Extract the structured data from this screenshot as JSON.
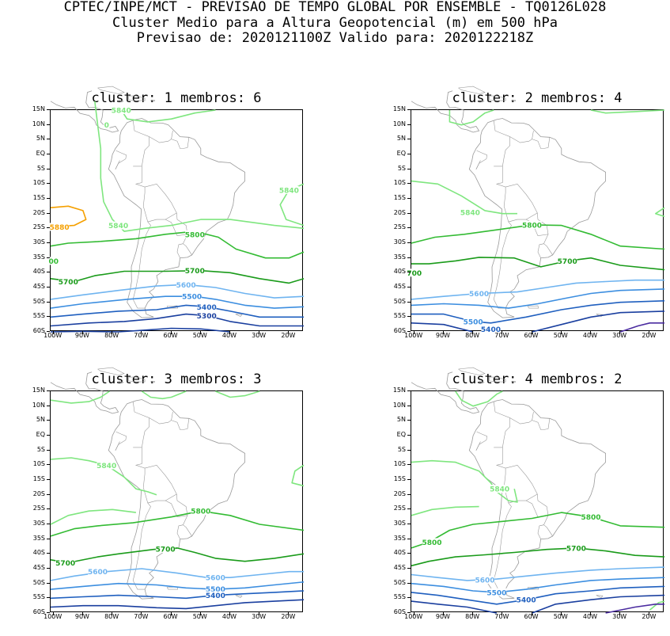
{
  "header": {
    "line1": "CPTEC/INPE/MCT - PREVISAO DE TEMPO GLOBAL POR ENSEMBLE - TQ0126L028",
    "line2": "Cluster Medio para a Altura Geopotencial (m) em 500 hPa",
    "line3": "Previsao de: 2020121100Z   Valido para: 2020122218Z"
  },
  "axes": {
    "lat_labels": [
      "15N",
      "10N",
      "5N",
      "EQ",
      "5S",
      "10S",
      "15S",
      "20S",
      "25S",
      "30S",
      "35S",
      "40S",
      "45S",
      "50S",
      "55S",
      "60S"
    ],
    "lon_labels": [
      "100W",
      "90W",
      "80W",
      "70W",
      "60W",
      "50W",
      "40W",
      "30W",
      "20W"
    ]
  },
  "colors": {
    "c5880": "#f5a000",
    "c5840": "#7fe67f",
    "c5800": "#33bb33",
    "c5700": "#1a9b1a",
    "c5600": "#6fb4f0",
    "c5500": "#3c8ee0",
    "c5400": "#1f5fbf",
    "c5300": "#1a3f9f",
    "c5200": "#4b2ca0",
    "coast": "#999999"
  },
  "panels": [
    {
      "title": "cluster: 1   membros: 6",
      "labels": [
        {
          "text": "5840",
          "color": "c5840"
        },
        {
          "text": "5840",
          "color": "c5840"
        },
        {
          "text": "5840",
          "color": "c5840"
        },
        {
          "text": "5880",
          "color": "c5880"
        },
        {
          "text": "5800",
          "color": "c5800"
        },
        {
          "text": "00",
          "color": "c5800"
        },
        {
          "text": "5700",
          "color": "c5700"
        },
        {
          "text": "5700",
          "color": "c5700"
        },
        {
          "text": "5600",
          "color": "c5600"
        },
        {
          "text": "5500",
          "color": "c5500"
        },
        {
          "text": "5400",
          "color": "c5400"
        },
        {
          "text": "5300",
          "color": "c5300"
        },
        {
          "text": "0",
          "color": "c5840"
        }
      ]
    },
    {
      "title": "cluster: 2   membros: 4",
      "labels": [
        {
          "text": "5840",
          "color": "c5840"
        },
        {
          "text": "5800",
          "color": "c5800"
        },
        {
          "text": "5700",
          "color": "c5700"
        },
        {
          "text": "700",
          "color": "c5700"
        },
        {
          "text": "5600",
          "color": "c5600"
        },
        {
          "text": "5500",
          "color": "c5500"
        },
        {
          "text": "5400",
          "color": "c5400"
        }
      ]
    },
    {
      "title": "cluster: 3   membros: 3",
      "labels": [
        {
          "text": "5840",
          "color": "c5840"
        },
        {
          "text": "5800",
          "color": "c5800"
        },
        {
          "text": "5700",
          "color": "c5700"
        },
        {
          "text": "5700",
          "color": "c5700"
        },
        {
          "text": "5600",
          "color": "c5600"
        },
        {
          "text": "5600",
          "color": "c5600"
        },
        {
          "text": "5500",
          "color": "c5500"
        },
        {
          "text": "5400",
          "color": "c5400"
        }
      ]
    },
    {
      "title": "cluster: 4   membros: 2",
      "labels": [
        {
          "text": "5840",
          "color": "c5840"
        },
        {
          "text": "5800",
          "color": "c5800"
        },
        {
          "text": "5800",
          "color": "c5800"
        },
        {
          "text": "5700",
          "color": "c5700"
        },
        {
          "text": "5600",
          "color": "c5600"
        },
        {
          "text": "5500",
          "color": "c5500"
        },
        {
          "text": "5400",
          "color": "c5400"
        }
      ]
    }
  ]
}
